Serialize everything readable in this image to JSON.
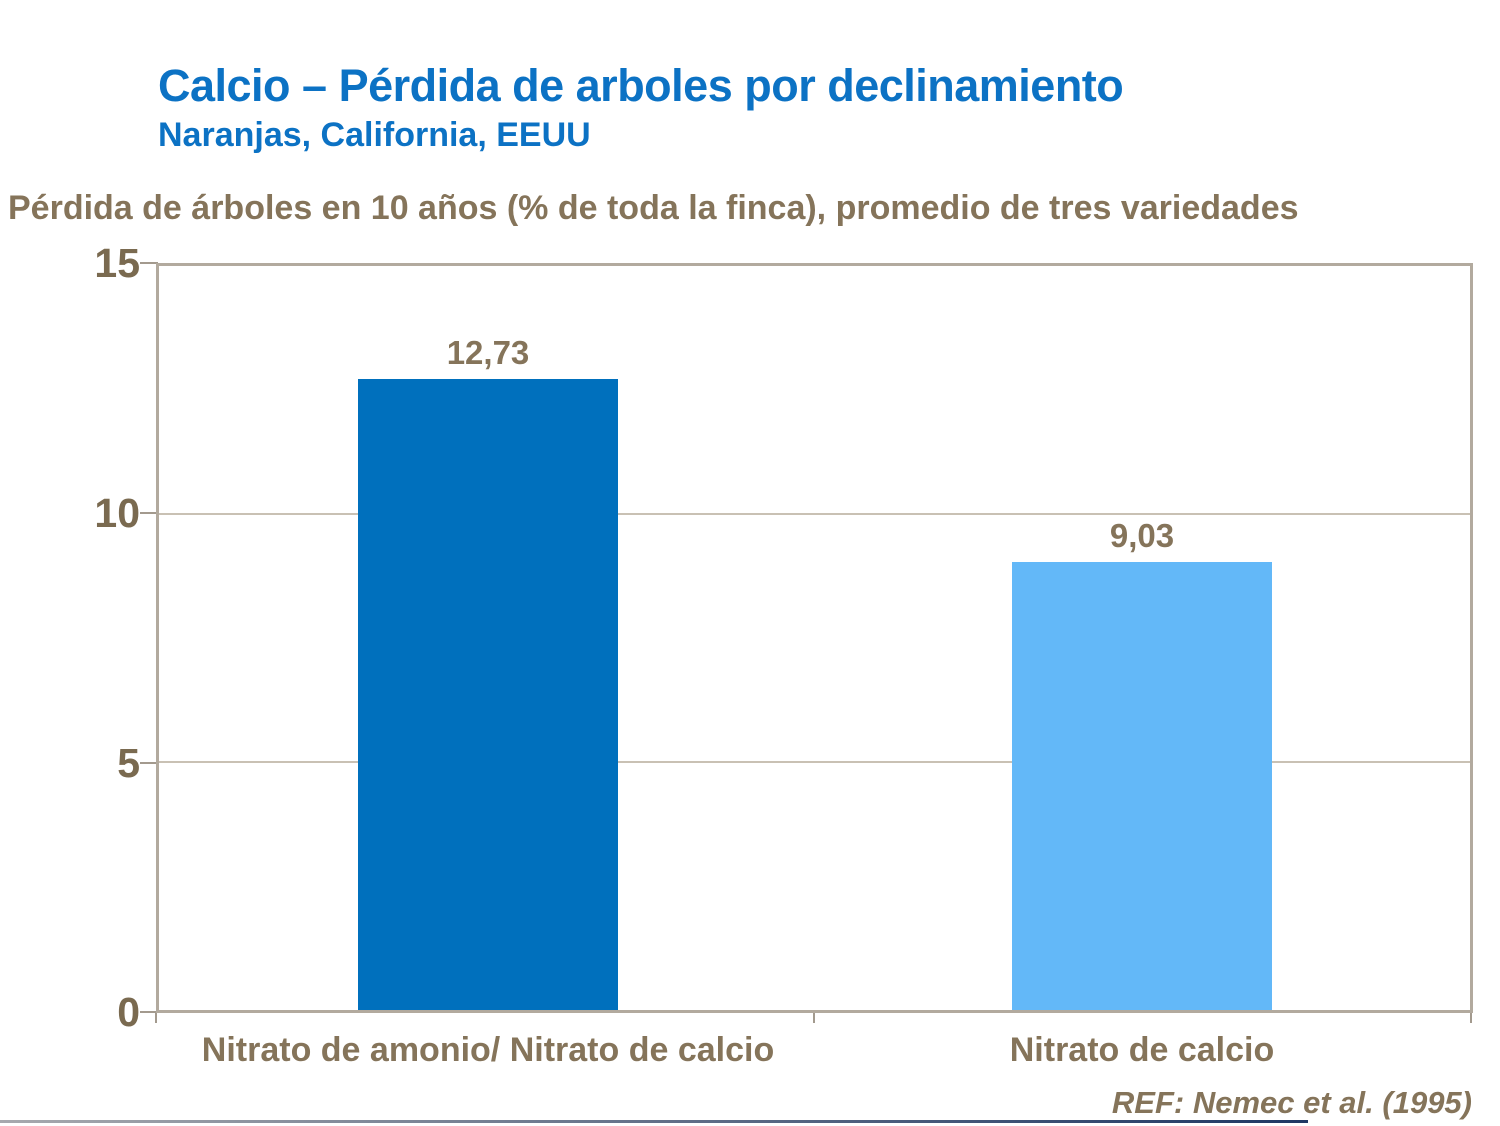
{
  "slide": {
    "title": "Calcio – Pérdida de arboles por declinamiento",
    "subtitle": "Naranjas, California, EEUU",
    "reference": "REF: Nemec et al. (1995)"
  },
  "chart_data": {
    "type": "bar",
    "title": "Pérdida de árboles en 10 años (% de toda la finca), promedio de tres variedades",
    "categories": [
      "Nitrato de amonio/ Nitrato de calcio",
      "Nitrato de calcio"
    ],
    "values": [
      12.73,
      9.03
    ],
    "value_labels": [
      "12,73",
      "9,03"
    ],
    "bar_colors": [
      "#0070bd",
      "#63b8f8"
    ],
    "ylim": [
      0,
      15
    ],
    "yticks": [
      0,
      5,
      10,
      15
    ],
    "ytick_labels": [
      "15",
      "10",
      "5",
      "0"
    ],
    "grid": true,
    "legend": "none",
    "annotations": [
      "REF: Nemec et al. (1995)"
    ]
  },
  "colors": {
    "title_blue": "#0c72c4",
    "text_brown": "#85745a",
    "ytick_brown": "#7a6a50",
    "bar_dark_blue": "#0070bd",
    "bar_light_blue": "#63b8f8",
    "axis_frame": "#b2aa9e",
    "gridline": "#c9c1b4",
    "tick": "#a39a8e",
    "bottom_rule_left": "#a7a9ae",
    "bottom_rule_right": "#1f3864"
  }
}
